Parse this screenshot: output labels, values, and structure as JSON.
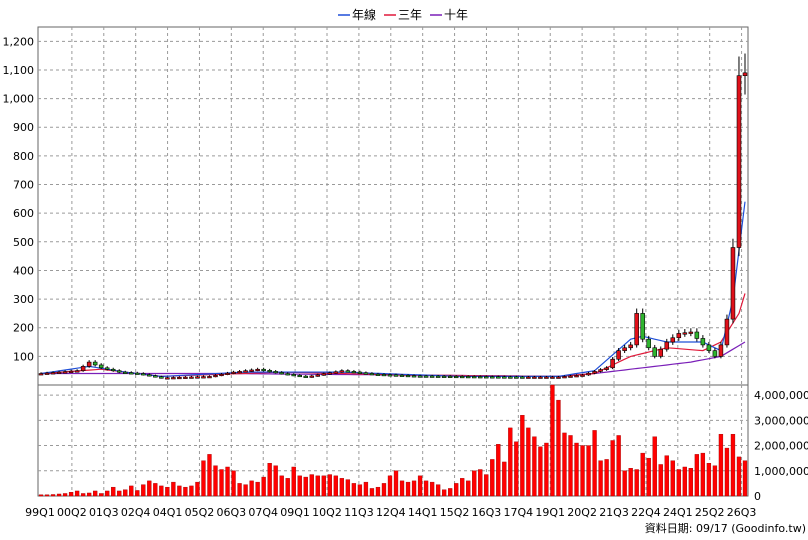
{
  "legend": [
    {
      "label": "年線",
      "color": "#1f4fd8"
    },
    {
      "label": "三年",
      "color": "#e0193a"
    },
    {
      "label": "十年",
      "color": "#7a1fb8"
    }
  ],
  "footer": "資料日期: 09/17 (Goodinfo.tw)",
  "colors": {
    "up": "#e0101a",
    "down": "#2fb52f",
    "volume": "#ff0000",
    "grid": "#9a9a9a"
  },
  "chart_data": [
    {
      "type": "candlestick",
      "title": "",
      "yticks": [
        100,
        200,
        300,
        400,
        500,
        600,
        700,
        800,
        900,
        1000,
        1100,
        1200
      ],
      "ytick_labels": [
        "100",
        "200",
        "300",
        "400",
        "500",
        "600",
        "700",
        "800",
        "900",
        "1,000",
        "1,100",
        "1,200"
      ],
      "ylim": [
        0,
        1250
      ],
      "x_labels": [
        "99Q1",
        "00Q2",
        "01Q3",
        "02Q4",
        "04Q1",
        "05Q2",
        "06Q3",
        "07Q4",
        "09Q1",
        "10Q2",
        "11Q3",
        "12Q4",
        "14Q1",
        "15Q2",
        "16Q3",
        "17Q4",
        "19Q1",
        "20Q2",
        "21Q3",
        "22Q4",
        "24Q1",
        "25Q2",
        "26Q3"
      ],
      "anchors": [
        [
          0,
          40
        ],
        [
          6,
          50
        ],
        [
          8,
          80
        ],
        [
          10,
          60
        ],
        [
          13,
          45
        ],
        [
          16,
          40
        ],
        [
          20,
          25
        ],
        [
          28,
          30
        ],
        [
          32,
          45
        ],
        [
          36,
          55
        ],
        [
          40,
          40
        ],
        [
          44,
          28
        ],
        [
          50,
          50
        ],
        [
          55,
          38
        ],
        [
          62,
          32
        ],
        [
          70,
          30
        ],
        [
          80,
          28
        ],
        [
          86,
          28
        ],
        [
          90,
          35
        ],
        [
          94,
          60
        ],
        [
          96,
          120
        ],
        [
          98,
          140
        ],
        [
          99,
          250
        ],
        [
          100,
          160
        ],
        [
          102,
          100
        ],
        [
          104,
          150
        ],
        [
          106,
          180
        ],
        [
          108,
          185
        ],
        [
          110,
          140
        ],
        [
          112,
          100
        ],
        [
          113,
          140
        ],
        [
          114,
          230
        ],
        [
          115,
          480
        ],
        [
          116,
          1080
        ],
        [
          117,
          1090
        ]
      ],
      "n_periods": 118,
      "ma_year": [
        [
          0,
          40
        ],
        [
          8,
          65
        ],
        [
          14,
          45
        ],
        [
          20,
          30
        ],
        [
          34,
          45
        ],
        [
          50,
          45
        ],
        [
          70,
          30
        ],
        [
          86,
          30
        ],
        [
          92,
          50
        ],
        [
          98,
          160
        ],
        [
          100,
          170
        ],
        [
          104,
          150
        ],
        [
          110,
          150
        ],
        [
          113,
          120
        ],
        [
          115,
          300
        ],
        [
          117,
          640
        ]
      ],
      "ma_3y": [
        [
          0,
          40
        ],
        [
          10,
          55
        ],
        [
          20,
          30
        ],
        [
          40,
          45
        ],
        [
          60,
          35
        ],
        [
          86,
          30
        ],
        [
          92,
          40
        ],
        [
          98,
          100
        ],
        [
          104,
          130
        ],
        [
          110,
          120
        ],
        [
          113,
          150
        ],
        [
          116,
          250
        ],
        [
          117,
          320
        ]
      ],
      "ma_10y": [
        [
          0,
          40
        ],
        [
          30,
          40
        ],
        [
          60,
          35
        ],
        [
          86,
          30
        ],
        [
          92,
          40
        ],
        [
          100,
          60
        ],
        [
          108,
          80
        ],
        [
          113,
          100
        ],
        [
          117,
          150
        ]
      ]
    },
    {
      "type": "bar",
      "title": "",
      "yticks": [
        0,
        1000000,
        2000000,
        3000000,
        4000000
      ],
      "ytick_labels": [
        "0",
        "1,000,000",
        "2,000,000",
        "3,000,000",
        "4,000,000"
      ],
      "ylim": [
        0,
        4400000
      ],
      "volumes": [
        50000,
        50000,
        60000,
        80000,
        100000,
        150000,
        200000,
        100000,
        120000,
        200000,
        100000,
        200000,
        350000,
        200000,
        250000,
        400000,
        220000,
        450000,
        600000,
        500000,
        400000,
        350000,
        550000,
        400000,
        350000,
        400000,
        550000,
        1400000,
        1650000,
        1200000,
        1050000,
        1150000,
        1000000,
        500000,
        450000,
        600000,
        550000,
        750000,
        1300000,
        1200000,
        800000,
        700000,
        1150000,
        800000,
        750000,
        850000,
        800000,
        800000,
        850000,
        800000,
        700000,
        650000,
        500000,
        450000,
        550000,
        300000,
        350000,
        500000,
        800000,
        1000000,
        600000,
        550000,
        600000,
        800000,
        600000,
        550000,
        450000,
        250000,
        300000,
        500000,
        700000,
        600000,
        1000000,
        1050000,
        850000,
        1450000,
        2050000,
        1350000,
        2700000,
        2150000,
        3200000,
        2700000,
        2350000,
        1950000,
        2100000,
        4400000,
        3800000,
        2500000,
        2400000,
        2100000,
        2000000,
        2000000,
        2600000,
        1400000,
        1450000,
        2200000,
        2400000,
        1000000,
        1100000,
        1050000,
        1700000,
        1500000,
        2350000,
        1250000,
        1600000,
        1400000,
        1050000,
        1150000,
        1100000,
        1650000,
        1700000,
        1300000,
        1200000,
        2450000,
        1900000,
        2450000,
        1550000,
        1400000
      ]
    }
  ]
}
